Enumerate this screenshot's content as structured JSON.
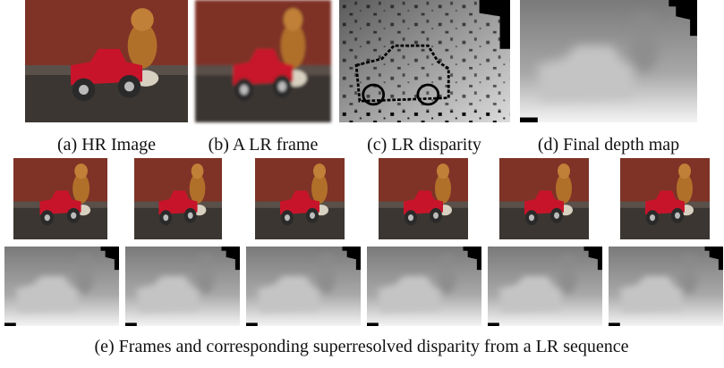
{
  "figure": {
    "captions": [
      "(a) HR Image",
      "(b) A LR frame",
      "(c) LR disparity",
      "(d) Final depth map"
    ],
    "sequence_caption": "(e) Frames and corresponding superresolved disparity from a LR sequence"
  }
}
